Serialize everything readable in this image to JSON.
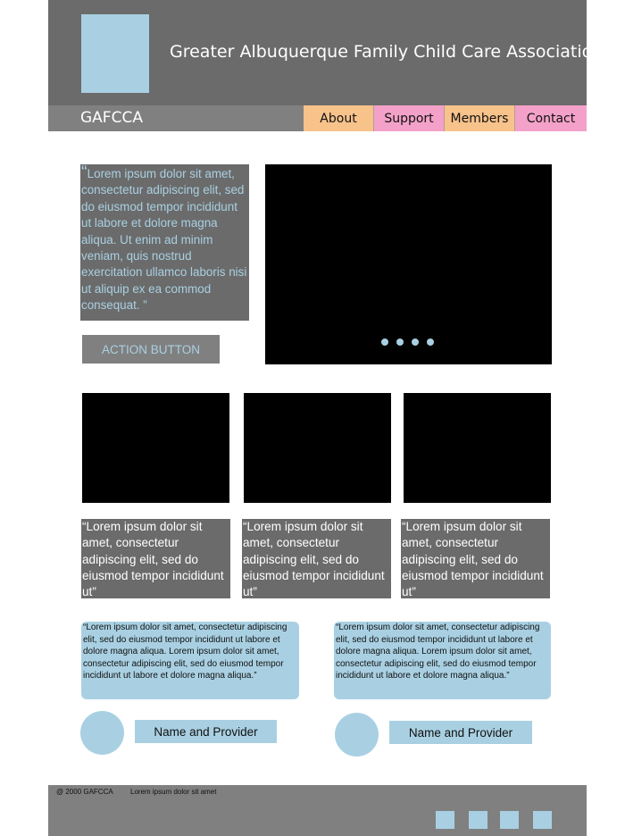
{
  "header": {
    "title": "Greater Albuquerque Family Child Care Association",
    "brand": "GAFCCA",
    "nav": [
      {
        "label": "About",
        "color": "#f8c28b"
      },
      {
        "label": "Support",
        "color": "#f4a1c9"
      },
      {
        "label": "Members",
        "color": "#f8c28b"
      },
      {
        "label": "Contact",
        "color": "#f4a1c9"
      }
    ]
  },
  "hero": {
    "quote_open": "“",
    "quote": "Lorem ipsum dolor sit amet, consectetur adipiscing elit, sed do eiusmod tempor incididunt ut labore et dolore magna aliqua. Ut enim ad minim veniam, quis nostrud exercitation ullamco laboris nisi ut aliquip ex ea commod consequat. ”",
    "action_button": "ACTION BUTTON",
    "slide_count": 4
  },
  "cards": [
    {
      "text": "“Lorem ipsum dolor sit amet, consectetur adipiscing elit, sed do eiusmod tempor incididunt ut”"
    },
    {
      "text": "“Lorem ipsum dolor sit amet, consectetur adipiscing elit, sed do eiusmod tempor incididunt ut”"
    },
    {
      "text": "“Lorem ipsum dolor sit amet, consectetur adipiscing elit, sed do eiusmod tempor incididunt ut”"
    }
  ],
  "testimonials": [
    {
      "quote": "“Lorem ipsum dolor sit amet, consectetur adipiscing elit, sed do eiusmod tempor incididunt ut labore et dolore magna aliqua. Lorem ipsum dolor sit amet, consectetur adipiscing elit, sed do eiusmod tempor incididunt ut labore et dolore magna aliqua.”",
      "name": "Name and Provider"
    },
    {
      "quote": "“Lorem ipsum dolor sit amet, consectetur adipiscing elit, sed do eiusmod tempor incididunt ut labore et dolore magna aliqua. Lorem ipsum dolor sit amet, consectetur adipiscing elit, sed do eiusmod tempor incididunt ut labore et dolore magna aliqua.”",
      "name": "Name and Provider"
    }
  ],
  "footer": {
    "copyright": "@ 2000 GAFCCA",
    "text": "Lorem ipsum dolor sit amet",
    "social_icons": [
      "social-icon",
      "social-icon",
      "social-icon",
      "social-icon"
    ]
  },
  "colors": {
    "dark_gray": "#6b6b6b",
    "mid_gray": "#808080",
    "light_blue": "#a9d0e2",
    "orange": "#f8c28b",
    "pink": "#f4a1c9"
  }
}
